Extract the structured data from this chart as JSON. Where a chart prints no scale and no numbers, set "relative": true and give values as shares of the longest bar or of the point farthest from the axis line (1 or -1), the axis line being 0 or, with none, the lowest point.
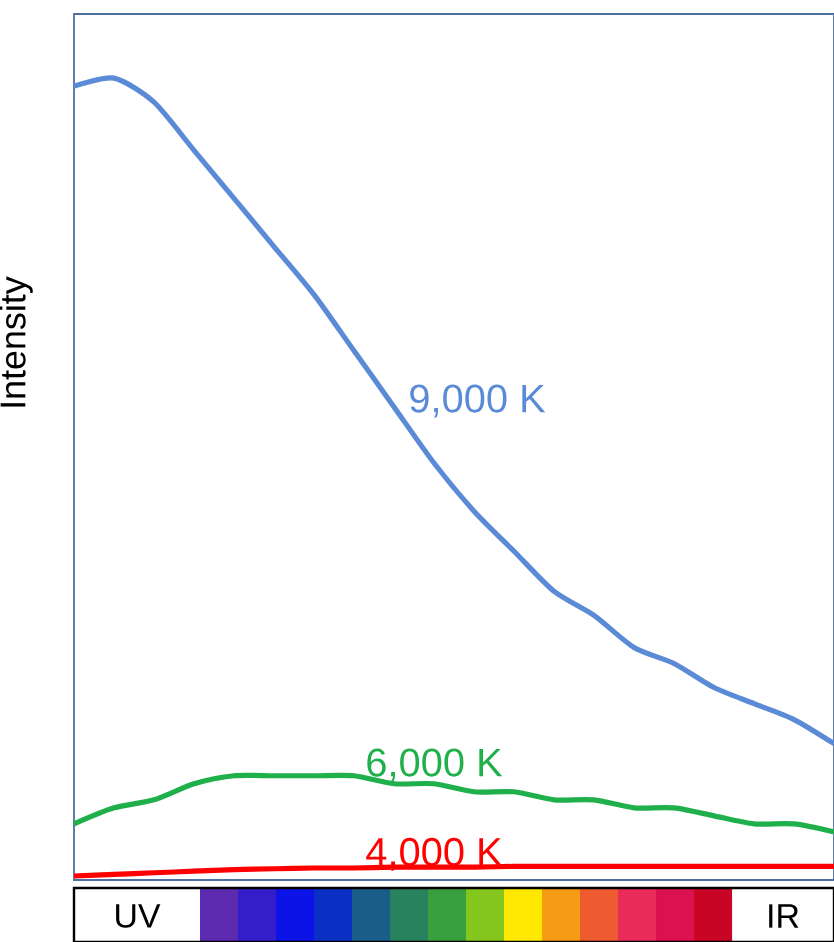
{
  "chart_data": {
    "type": "line",
    "relative": true,
    "ylabel": "Intensity",
    "categories": [
      null,
      null,
      null,
      null,
      null,
      null,
      null,
      null,
      null,
      null,
      null,
      null,
      null,
      null,
      null,
      null,
      null,
      null,
      null,
      null
    ],
    "series": [
      {
        "name": "9,000 K",
        "color": "#5b8ad6",
        "values": [
          0.99,
          1,
          0.97,
          0.91,
          0.85,
          0.79,
          0.73,
          0.66,
          0.59,
          0.52,
          0.46,
          0.41,
          0.36,
          0.33,
          0.29,
          0.27,
          0.24,
          0.22,
          0.2,
          0.17
        ]
      },
      {
        "name": "6,000 K",
        "color": "#1fb04b",
        "values": [
          0.07,
          0.09,
          0.1,
          0.12,
          0.13,
          0.13,
          0.13,
          0.13,
          0.12,
          0.12,
          0.11,
          0.11,
          0.1,
          0.1,
          0.09,
          0.09,
          0.08,
          0.07,
          0.07,
          0.06
        ]
      },
      {
        "name": "4,000 K",
        "color": "#ff0000",
        "values": [
          0.005,
          0.007,
          0.009,
          0.011,
          0.013,
          0.014,
          0.015,
          0.015,
          0.016,
          0.016,
          0.016,
          0.017,
          0.017,
          0.017,
          0.017,
          0.017,
          0.017,
          0.017,
          0.017,
          0.017
        ]
      }
    ],
    "annotations": [
      "UV",
      "IR"
    ]
  }
}
